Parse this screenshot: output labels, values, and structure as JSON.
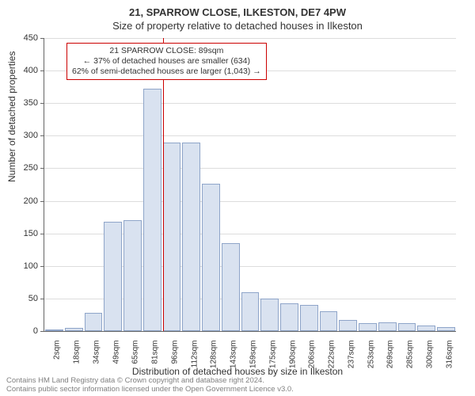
{
  "header": {
    "address_line": "21, SPARROW CLOSE, ILKESTON, DE7 4PW",
    "subtitle": "Size of property relative to detached houses in Ilkeston"
  },
  "chart": {
    "type": "bar",
    "ylabel": "Number of detached properties",
    "xlabel": "Distribution of detached houses by size in Ilkeston",
    "ylim": [
      0,
      450
    ],
    "ytick_step": 50,
    "background_color": "#ffffff",
    "grid_color": "#dddddd",
    "bar_fill": "#d9e2f0",
    "bar_border": "#8fa5c9",
    "marker_line_color": "#cc0000",
    "marker_x_value": 89,
    "x_categories": [
      "2sqm",
      "18sqm",
      "34sqm",
      "49sqm",
      "65sqm",
      "81sqm",
      "96sqm",
      "112sqm",
      "128sqm",
      "143sqm",
      "159sqm",
      "175sqm",
      "190sqm",
      "206sqm",
      "222sqm",
      "237sqm",
      "253sqm",
      "269sqm",
      "285sqm",
      "300sqm",
      "316sqm"
    ],
    "x_numeric": [
      2,
      18,
      34,
      49,
      65,
      81,
      96,
      112,
      128,
      143,
      159,
      175,
      190,
      206,
      222,
      237,
      253,
      269,
      285,
      300,
      316
    ],
    "values": [
      3,
      5,
      28,
      168,
      170,
      372,
      290,
      289,
      226,
      135,
      60,
      50,
      42,
      40,
      30,
      17,
      12,
      14,
      12,
      9,
      6
    ],
    "label_fontsize": 12,
    "tick_fontsize": 10,
    "bar_width_ratio": 0.92
  },
  "annotation": {
    "line1": "21 SPARROW CLOSE: 89sqm",
    "line2": "← 37% of detached houses are smaller (634)",
    "line3": "62% of semi-detached houses are larger (1,043) →",
    "border_color": "#cc0000"
  },
  "footer": {
    "line1": "Contains HM Land Registry data © Crown copyright and database right 2024.",
    "line2": "Contains public sector information licensed under the Open Government Licence v3.0."
  }
}
